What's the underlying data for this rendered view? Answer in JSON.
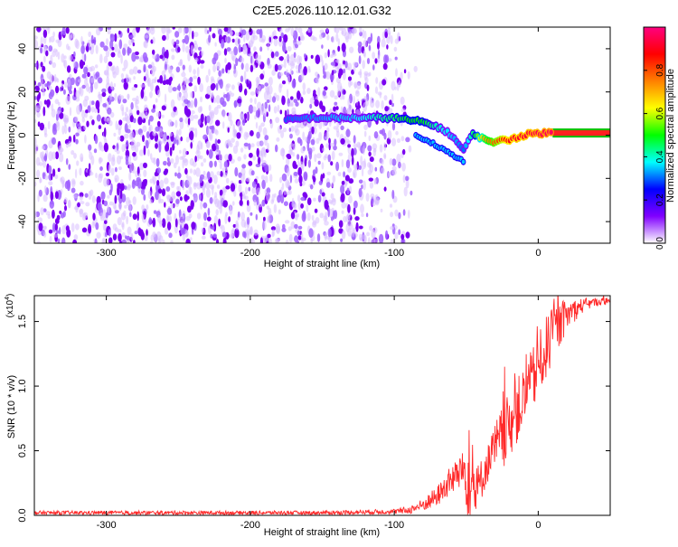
{
  "title": "C2E5.2026.110.12.01.G32",
  "chart_data": [
    {
      "type": "heatmap",
      "name": "spectrogram",
      "xlabel": "Height of straight line (km)",
      "ylabel": "Frequency (Hz)",
      "xlim": [
        -350,
        50
      ],
      "ylim": [
        -50,
        50
      ],
      "xticks": [
        -300,
        -200,
        -100,
        0
      ],
      "xtick_labels": [
        "-300",
        "-200",
        "-100",
        "0"
      ],
      "yticks": [
        -40,
        -20,
        0,
        20,
        40
      ],
      "ytick_labels": [
        "-40",
        "-20",
        "0",
        "20",
        "40"
      ],
      "noise_region_x": [
        -350,
        -85
      ],
      "tone_track": {
        "x": [
          -175,
          -160,
          -145,
          -130,
          -115,
          -100,
          -90,
          -80,
          -70,
          -60,
          -52,
          -45,
          -38,
          -30,
          -20,
          -10,
          0,
          10,
          50
        ],
        "frequency_hz": [
          7,
          8,
          8,
          8,
          8,
          8,
          7,
          6,
          4,
          0,
          -7,
          1,
          -2,
          -3,
          -2,
          0,
          1,
          1,
          1
        ],
        "amplitude": [
          0.3,
          0.32,
          0.34,
          0.35,
          0.4,
          0.45,
          0.5,
          0.5,
          0.4,
          0.35,
          0.3,
          0.45,
          0.7,
          0.8,
          0.9,
          0.92,
          0.95,
          0.97,
          0.98
        ]
      },
      "secondary_branch": {
        "x": [
          -85,
          -75,
          -65,
          -58,
          -52
        ],
        "frequency_hz": [
          0,
          -3,
          -7,
          -10,
          -12
        ]
      },
      "colorbar": {
        "label": "Normalized spectral amplitude",
        "range": [
          0,
          1
        ],
        "ticks": [
          0.0,
          0.2,
          0.4,
          0.6,
          0.8
        ],
        "tick_labels": [
          "0.0",
          "0.2",
          "0.4",
          "0.6",
          "0.8"
        ],
        "colors": [
          "#ffffff",
          "#8000ff",
          "#0000ff",
          "#00ffff",
          "#00ff00",
          "#ffff00",
          "#ff8000",
          "#ff0000",
          "#ff0080"
        ]
      }
    },
    {
      "type": "line",
      "name": "snr",
      "xlabel": "Height of straight line (km)",
      "ylabel": "SNR (10 * v/v)",
      "scale_label": "(x10",
      "scale_exponent": "4",
      "xlim": [
        -350,
        50
      ],
      "ylim": [
        0,
        17000
      ],
      "xticks": [
        -300,
        -200,
        -100,
        0
      ],
      "xtick_labels": [
        "-300",
        "-200",
        "-100",
        "0"
      ],
      "yticks": [
        0,
        5000,
        10000,
        15000
      ],
      "ytick_labels": [
        "0.0",
        "0.5",
        "1.0",
        "1.5"
      ],
      "color": "#ff2a2a",
      "envelope": {
        "x": [
          -350,
          -150,
          -100,
          -90,
          -80,
          -70,
          -60,
          -52,
          -48,
          -45,
          -42,
          -38,
          -35,
          -30,
          -25,
          -20,
          -15,
          -10,
          -5,
          0,
          5,
          10,
          20,
          30,
          40,
          50
        ],
        "base": [
          200,
          200,
          300,
          400,
          800,
          1500,
          2800,
          3500,
          3000,
          1800,
          2000,
          3200,
          4000,
          5200,
          6000,
          7000,
          8000,
          9000,
          10200,
          11500,
          12800,
          14000,
          15500,
          16200,
          16500,
          16600
        ],
        "amplitude": [
          150,
          150,
          200,
          300,
          500,
          800,
          1200,
          1500,
          4000,
          3000,
          2000,
          1500,
          1500,
          2000,
          2500,
          2500,
          2500,
          2500,
          2500,
          2500,
          2500,
          2200,
          1200,
          600,
          300,
          300
        ]
      }
    }
  ]
}
